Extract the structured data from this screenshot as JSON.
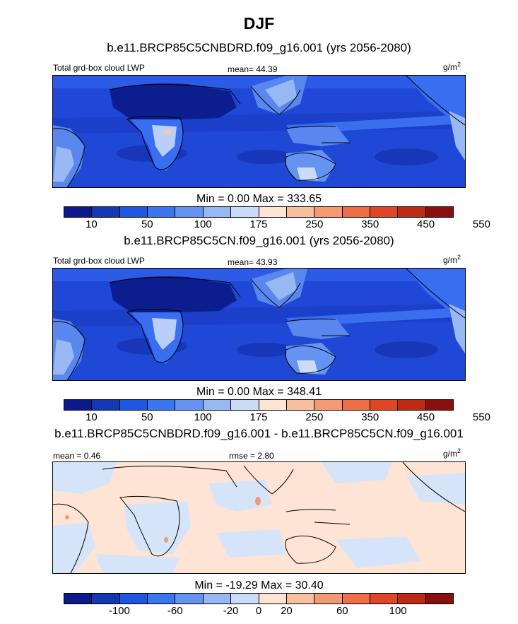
{
  "title": "DJF",
  "colors": {
    "lwp_scale": [
      "#0a1a8c",
      "#1437b4",
      "#1e56e0",
      "#3b76f0",
      "#6593f2",
      "#98b8f4",
      "#cadcf8",
      "#fde4d4",
      "#f9c0a0",
      "#f39a72",
      "#ee6e45",
      "#e04625",
      "#bf2a14",
      "#8c0f0f"
    ],
    "diff_scale": [
      "#0a1a8c",
      "#1437b4",
      "#1e56e0",
      "#3b76f0",
      "#6593f2",
      "#98b8f4",
      "#cadcf8",
      "#fde4d4",
      "#f9c0a0",
      "#f39a72",
      "#ee6e45",
      "#e04625",
      "#bf2a14",
      "#8c0f0f"
    ],
    "land_outline": "#000000"
  },
  "panels": [
    {
      "case": "b.e11.BRCP85C5CNBDRD.f09_g16.001 (yrs 2056-2080)",
      "left_label": "Total grd-box cloud LWP",
      "center_label": "mean=  44.39",
      "units": "g/m",
      "units_exp": "2",
      "minmax": "Min =   0.00 Max = 333.65",
      "ticks": [
        "10",
        "50",
        "100",
        "175",
        "250",
        "350",
        "450",
        "550"
      ]
    },
    {
      "case": "b.e11.BRCP85C5CN.f09_g16.001 (yrs 2056-2080)",
      "left_label": "Total grd-box cloud LWP",
      "center_label": "mean=  43.93",
      "units": "g/m",
      "units_exp": "2",
      "minmax": "Min =   0.00 Max = 348.41",
      "ticks": [
        "10",
        "50",
        "100",
        "175",
        "250",
        "350",
        "450",
        "550"
      ]
    },
    {
      "case": "b.e11.BRCP85C5CNBDRD.f09_g16.001 - b.e11.BRCP85C5CN.f09_g16.001",
      "left_label": "mean =   0.46",
      "center_label": "rmse =   2.80",
      "units": "g/m",
      "units_exp": "2",
      "minmax": "Min = -19.29 Max =  30.40",
      "ticks": [
        "-100",
        "-60",
        "-20",
        "0",
        "20",
        "60",
        "100"
      ]
    }
  ]
}
